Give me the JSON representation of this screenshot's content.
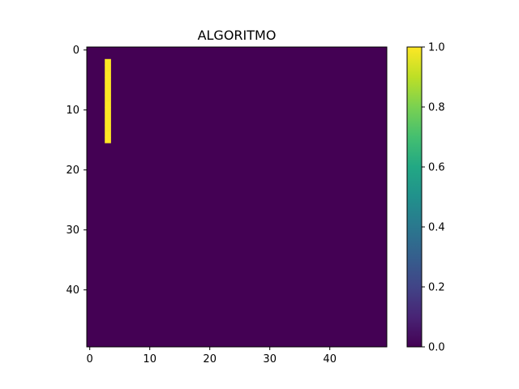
{
  "chart_data": {
    "type": "heatmap",
    "title": "ALGORITMO",
    "xlabel": "",
    "ylabel": "",
    "grid_size": [
      50,
      50
    ],
    "xlim": [
      -0.5,
      49.5
    ],
    "ylim": [
      49.5,
      -0.5
    ],
    "x_ticks": [
      0,
      10,
      20,
      30,
      40
    ],
    "y_ticks": [
      0,
      10,
      20,
      30,
      40
    ],
    "background_value": 0.0,
    "highlighted_cells": {
      "column": 3,
      "rows_from": 2,
      "rows_to": 15,
      "value": 1.0
    },
    "colorbar": {
      "colormap": "viridis",
      "range": [
        0.0,
        1.0
      ],
      "ticks": [
        "0.0",
        "0.2",
        "0.4",
        "0.6",
        "0.8",
        "1.0"
      ]
    },
    "grid": false
  },
  "colors": {
    "low": "#440154",
    "high": "#fde725"
  }
}
